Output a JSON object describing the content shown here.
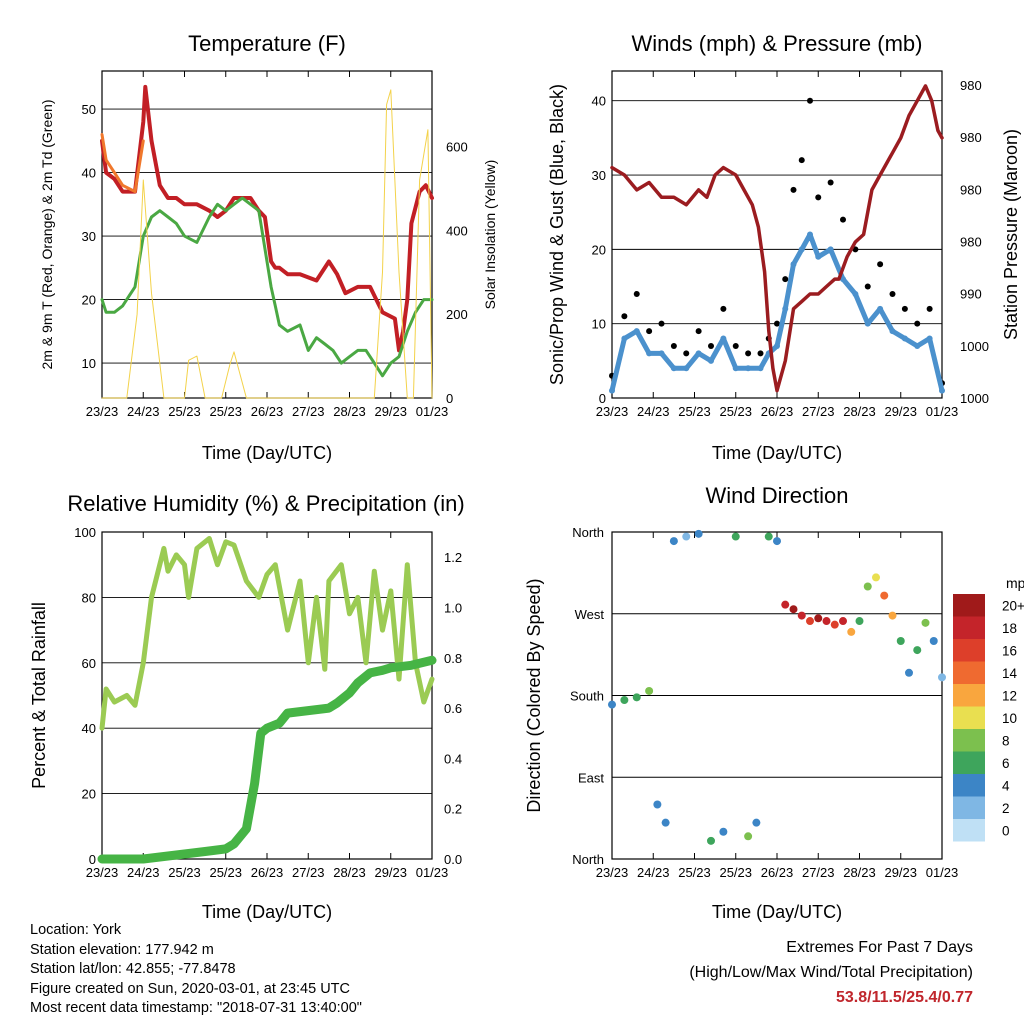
{
  "panels": {
    "temperature": {
      "title": "Temperature (F)",
      "ylabel_left": "2m & 9m T (Red, Orange) & 2m Td (Green)",
      "ylabel_right": "Solar Insolation (Yellow)",
      "xlabel": "Time (Day/UTC)"
    },
    "winds": {
      "title": "Winds (mph) & Pressure (mb)",
      "ylabel_left": "Sonic/Prop Wind & Gust (Blue, Black)",
      "ylabel_right": "Station Pressure (Maroon)",
      "xlabel": "Time (Day/UTC)"
    },
    "humidity": {
      "title": "Relative Humidity (%) & Precipitation (in)",
      "ylabel_left": "Percent & Total Rainfall",
      "xlabel": "Time (Day/UTC)"
    },
    "direction": {
      "title": "Wind Direction",
      "ylabel_left": "Direction (Colored By Speed)",
      "xlabel": "Time (Day/UTC)",
      "legend_title": "mph",
      "legend_labels": [
        "20+",
        "18",
        "16",
        "14",
        "12",
        "10",
        "8",
        "6",
        "4",
        "2",
        "0"
      ],
      "legend_colors": [
        "#a01a1a",
        "#c4242a",
        "#dd3f2a",
        "#ef6a30",
        "#f9a63e",
        "#e9df50",
        "#7cc04e",
        "#3ea55c",
        "#3c85c6",
        "#7fb7e4",
        "#bfe0f5"
      ]
    }
  },
  "x_ticks": [
    "23/23",
    "24/23",
    "25/23",
    "25/23",
    "26/23",
    "27/23",
    "28/23",
    "29/23",
    "01/23"
  ],
  "footer": {
    "location": "Location: York",
    "elevation": "Station elevation: 177.942 m",
    "latlon": "Station lat/lon: 42.855; -77.8478",
    "created": "Figure created on Sun, 2020-03-01, at 23:45 UTC",
    "recent": "Most recent data timestamp: \"2018-07-31 13:40:00\"",
    "extremes_title": "Extremes For Past 7 Days",
    "extremes_sub": "(High/Low/Max Wind/Total Precipitation)",
    "extremes_values": "53.8/11.5/25.4/0.77"
  },
  "chart_data": [
    {
      "type": "line",
      "title": "Temperature (F)",
      "xlabel": "Time (Day/UTC)",
      "ylabel": "2m & 9m T (Red, Orange) & 2m Td (Green)",
      "y2label": "Solar Insolation (Yellow)",
      "x_range": [
        0,
        8
      ],
      "ylim": [
        4.5,
        56
      ],
      "y_ticks": [
        10,
        20,
        30,
        40,
        50
      ],
      "y2lim": [
        0,
        780
      ],
      "y2_ticks": [
        0,
        200,
        400,
        600
      ],
      "grid": true,
      "series": [
        {
          "name": "2m T",
          "color": "#c21f25",
          "x": [
            0,
            0.1,
            0.3,
            0.5,
            0.8,
            1.0,
            1.05,
            1.2,
            1.4,
            1.6,
            1.8,
            2.0,
            2.3,
            2.6,
            2.8,
            3.0,
            3.2,
            3.4,
            3.6,
            3.8,
            3.95,
            4.1,
            4.2,
            4.3,
            4.5,
            4.8,
            5.2,
            5.5,
            5.7,
            5.9,
            6.2,
            6.5,
            6.8,
            7.1,
            7.2,
            7.3,
            7.4,
            7.5,
            7.7,
            7.85,
            8.0
          ],
          "y": [
            45,
            40,
            39,
            37,
            37,
            48,
            53.5,
            45,
            38,
            36,
            36,
            35,
            35,
            34,
            33,
            34,
            36,
            36,
            36,
            34,
            33,
            26,
            25,
            25,
            24,
            24,
            23,
            26,
            24,
            21,
            22,
            22,
            18,
            17,
            12,
            15,
            20,
            32,
            37,
            38,
            36
          ]
        },
        {
          "name": "9m T",
          "color": "#f0782c",
          "x": [
            0,
            0.1,
            0.3,
            0.5,
            0.8,
            1.0
          ],
          "y": [
            46,
            42,
            40,
            38,
            37,
            45
          ]
        },
        {
          "name": "2m Td",
          "color": "#4aa843",
          "x": [
            0,
            0.1,
            0.3,
            0.5,
            0.8,
            1.0,
            1.2,
            1.4,
            1.6,
            1.8,
            2.0,
            2.3,
            2.6,
            2.8,
            3.0,
            3.2,
            3.4,
            3.6,
            3.8,
            4.0,
            4.1,
            4.2,
            4.3,
            4.5,
            4.8,
            5.0,
            5.2,
            5.4,
            5.6,
            5.8,
            6.0,
            6.2,
            6.4,
            6.6,
            6.8,
            7.0,
            7.2,
            7.4,
            7.6,
            7.8,
            8.0
          ],
          "y": [
            20,
            18,
            18,
            19,
            22,
            30,
            33,
            34,
            33,
            32,
            30,
            29,
            33,
            35,
            34,
            35,
            36,
            35,
            34,
            26,
            22,
            19,
            16,
            15,
            16,
            12,
            14,
            13,
            12,
            10,
            11,
            12,
            12,
            10,
            8,
            10,
            11,
            15,
            18,
            20,
            20
          ]
        },
        {
          "name": "Solar Insolation",
          "axis": "y2",
          "color": "#f3d24a",
          "x": [
            0,
            0.6,
            0.85,
            1.0,
            1.2,
            1.5,
            1.8,
            2.0,
            2.1,
            2.3,
            2.5,
            2.9,
            3.1,
            3.2,
            3.5,
            3.9,
            6.6,
            6.8,
            6.9,
            7.0,
            7.2,
            7.4,
            7.55,
            7.7,
            7.9,
            8.0
          ],
          "y": [
            0,
            0,
            200,
            520,
            250,
            0,
            0,
            0,
            90,
            100,
            0,
            0,
            80,
            110,
            0,
            0,
            0,
            300,
            700,
            735,
            300,
            0,
            0,
            520,
            640,
            0
          ]
        }
      ]
    },
    {
      "type": "scatter",
      "title": "Winds (mph) & Pressure (mb)",
      "xlabel": "Time (Day/UTC)",
      "ylabel": "Sonic/Prop Wind & Gust (Blue, Black)",
      "y2label": "Station Pressure (Maroon)",
      "x_range": [
        0,
        8
      ],
      "ylim": [
        0,
        44
      ],
      "y_ticks": [
        0,
        10,
        20,
        30,
        40
      ],
      "y2_tick_labels": [
        "980",
        "980",
        "980",
        "980",
        "990",
        "1000",
        "1000"
      ],
      "grid": true,
      "series": [
        {
          "name": "Gust",
          "color": "#000000",
          "x": [
            0,
            0.3,
            0.6,
            0.9,
            1.2,
            1.5,
            1.8,
            2.1,
            2.4,
            2.7,
            3.0,
            3.3,
            3.6,
            3.8,
            4.0,
            4.2,
            4.4,
            4.6,
            4.8,
            5.0,
            5.3,
            5.6,
            5.9,
            6.2,
            6.5,
            6.8,
            7.1,
            7.4,
            7.7,
            8.0
          ],
          "y": [
            3,
            11,
            14,
            9,
            10,
            7,
            6,
            9,
            7,
            12,
            7,
            6,
            6,
            8,
            10,
            16,
            28,
            32,
            40,
            27,
            29,
            24,
            20,
            15,
            18,
            14,
            12,
            10,
            12,
            2
          ]
        },
        {
          "name": "Wind",
          "color": "#4b91cd",
          "x": [
            0,
            0.3,
            0.6,
            0.9,
            1.2,
            1.5,
            1.8,
            2.1,
            2.4,
            2.7,
            3.0,
            3.3,
            3.6,
            3.8,
            4.0,
            4.2,
            4.4,
            4.6,
            4.8,
            5.0,
            5.3,
            5.6,
            5.9,
            6.2,
            6.5,
            6.8,
            7.1,
            7.4,
            7.7,
            8.0
          ],
          "y": [
            1,
            8,
            9,
            6,
            6,
            4,
            4,
            6,
            5,
            8,
            4,
            4,
            4,
            6,
            7,
            12,
            18,
            20,
            22,
            19,
            20,
            16,
            14,
            10,
            12,
            9,
            8,
            7,
            8,
            1
          ]
        },
        {
          "name": "Station Pressure",
          "color": "#9b1c20",
          "x": [
            0,
            0.3,
            0.6,
            0.9,
            1.2,
            1.5,
            1.8,
            2.1,
            2.3,
            2.5,
            2.7,
            3.0,
            3.2,
            3.4,
            3.55,
            3.7,
            3.8,
            3.9,
            4.0,
            4.2,
            4.4,
            4.6,
            4.8,
            5.0,
            5.2,
            5.4,
            5.5,
            5.7,
            5.9,
            6.1,
            6.3,
            6.5,
            6.8,
            7.0,
            7.2,
            7.4,
            7.6,
            7.75,
            7.9,
            8.0
          ],
          "y": [
            31,
            30,
            28,
            29,
            27,
            27,
            26,
            28,
            27,
            30,
            31,
            30,
            28,
            26,
            23,
            17,
            9,
            4,
            1,
            5,
            12,
            13,
            14,
            14,
            15,
            16,
            16,
            19,
            21,
            22,
            28,
            30,
            33,
            35,
            38,
            40,
            42,
            40,
            36,
            35
          ]
        }
      ]
    },
    {
      "type": "line",
      "title": "Relative Humidity (%) & Precipitation (in)",
      "xlabel": "Time (Day/UTC)",
      "ylabel": "Percent & Total Rainfall",
      "x_range": [
        0,
        8
      ],
      "ylim": [
        0,
        100
      ],
      "y_ticks": [
        0,
        20,
        40,
        60,
        80,
        100
      ],
      "y2lim": [
        0,
        1.3
      ],
      "y2_ticks": [
        0.0,
        0.2,
        0.4,
        0.6,
        0.8,
        1.0,
        1.2
      ],
      "grid": true,
      "series": [
        {
          "name": "Relative Humidity",
          "color": "#9bcb53",
          "x": [
            0,
            0.1,
            0.3,
            0.6,
            0.8,
            1.0,
            1.2,
            1.5,
            1.6,
            1.8,
            2.0,
            2.1,
            2.3,
            2.6,
            2.8,
            3.0,
            3.2,
            3.5,
            3.8,
            4.0,
            4.2,
            4.5,
            4.8,
            5.0,
            5.2,
            5.4,
            5.5,
            5.8,
            6.0,
            6.2,
            6.4,
            6.6,
            6.8,
            7.0,
            7.2,
            7.4,
            7.6,
            7.8,
            8.0
          ],
          "y": [
            40,
            52,
            48,
            50,
            47,
            60,
            80,
            95,
            88,
            93,
            90,
            80,
            95,
            98,
            90,
            97,
            96,
            85,
            80,
            87,
            90,
            70,
            85,
            60,
            80,
            58,
            85,
            90,
            75,
            80,
            60,
            88,
            70,
            82,
            55,
            90,
            60,
            48,
            55
          ]
        },
        {
          "name": "Total Rainfall",
          "axis": "y2",
          "color": "#46b445",
          "x": [
            0,
            1.0,
            1.5,
            2.0,
            2.5,
            3.0,
            3.2,
            3.5,
            3.7,
            3.85,
            4.0,
            4.3,
            4.5,
            5.0,
            5.5,
            5.7,
            6.0,
            6.2,
            6.5,
            6.8,
            7.0,
            7.5,
            8.0
          ],
          "y": [
            0.0,
            0.0,
            0.01,
            0.02,
            0.03,
            0.04,
            0.06,
            0.12,
            0.3,
            0.5,
            0.52,
            0.54,
            0.58,
            0.59,
            0.6,
            0.62,
            0.66,
            0.7,
            0.74,
            0.75,
            0.76,
            0.77,
            0.79
          ]
        }
      ]
    },
    {
      "type": "scatter",
      "title": "Wind Direction",
      "xlabel": "Time (Day/UTC)",
      "ylabel": "Direction (Colored By Speed)",
      "x_range": [
        0,
        8
      ],
      "y_categories": [
        "North",
        "East",
        "South",
        "West",
        "North"
      ],
      "ylim": [
        0,
        360
      ],
      "grid": true,
      "series": [
        {
          "name": "Direction",
          "x": [
            0,
            0.3,
            0.6,
            0.9,
            1.1,
            1.3,
            1.5,
            1.8,
            2.1,
            2.4,
            2.7,
            3.0,
            3.3,
            3.5,
            3.8,
            4.0,
            4.2,
            4.4,
            4.6,
            4.8,
            5.0,
            5.2,
            5.4,
            5.6,
            5.8,
            6.0,
            6.2,
            6.4,
            6.6,
            6.8,
            7.0,
            7.2,
            7.4,
            7.6,
            7.8,
            8.0
          ],
          "y": [
            170,
            175,
            178,
            185,
            60,
            40,
            350,
            355,
            358,
            20,
            30,
            355,
            25,
            40,
            355,
            350,
            280,
            275,
            268,
            262,
            265,
            262,
            258,
            262,
            250,
            262,
            300,
            310,
            290,
            268,
            240,
            205,
            230,
            260,
            240,
            200
          ],
          "speed": [
            4,
            6,
            6,
            8,
            4,
            4,
            4,
            2,
            4,
            6,
            4,
            6,
            8,
            4,
            6,
            4,
            18,
            20,
            18,
            16,
            20,
            18,
            16,
            18,
            12,
            6,
            8,
            10,
            14,
            12,
            6,
            4,
            6,
            8,
            4,
            2
          ]
        }
      ]
    }
  ]
}
